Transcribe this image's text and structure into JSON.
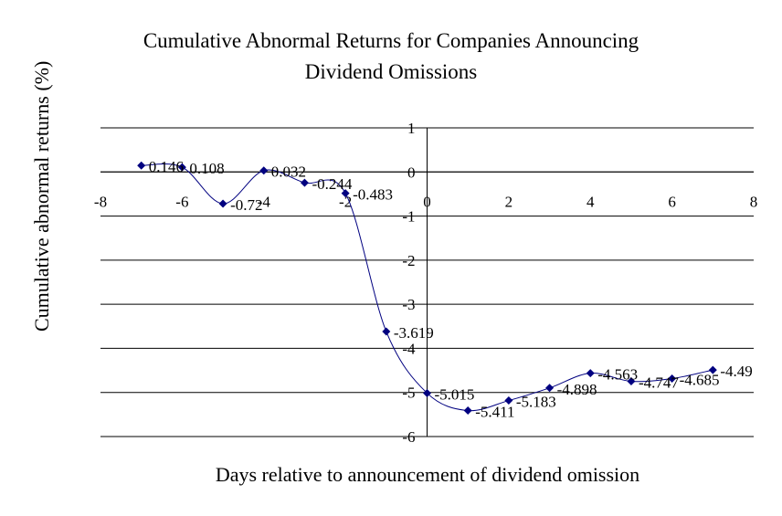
{
  "chart_data": {
    "type": "line",
    "title": [
      "Cumulative Abnormal Returns for Companies Announcing",
      "Dividend Omissions"
    ],
    "xlabel": "Days relative to announcement of dividend omission",
    "ylabel": "Cumulative abnormal returns (%)",
    "xlim": [
      -8,
      8
    ],
    "ylim": [
      -6,
      1
    ],
    "x_ticks": [
      -8,
      -6,
      -4,
      -2,
      0,
      2,
      4,
      6,
      8
    ],
    "y_ticks": [
      1,
      0,
      -1,
      -2,
      -3,
      -4,
      -5,
      -6
    ],
    "grid": "horizontal",
    "legend": "none",
    "series": [
      {
        "color": "#000080",
        "smooth": true,
        "x": [
          -7,
          -6,
          -5,
          -4,
          -3,
          -2,
          -1,
          0,
          1,
          2,
          3,
          4,
          5,
          6,
          7
        ],
        "values": [
          0.146,
          0.108,
          -0.72,
          0.032,
          -0.244,
          -0.483,
          -3.619,
          -5.015,
          -5.411,
          -5.183,
          -4.898,
          -4.563,
          -4.747,
          -4.685,
          -4.49
        ],
        "data_labels": [
          "0.146",
          "0.108",
          "-0.72",
          "0.032",
          "-0.244",
          "-0.483",
          "-3.619",
          "-5.015",
          "-5.411",
          "-5.183",
          "-4.898",
          "-4.563",
          "-4.747",
          "-4.685",
          "-4.49"
        ]
      }
    ]
  }
}
